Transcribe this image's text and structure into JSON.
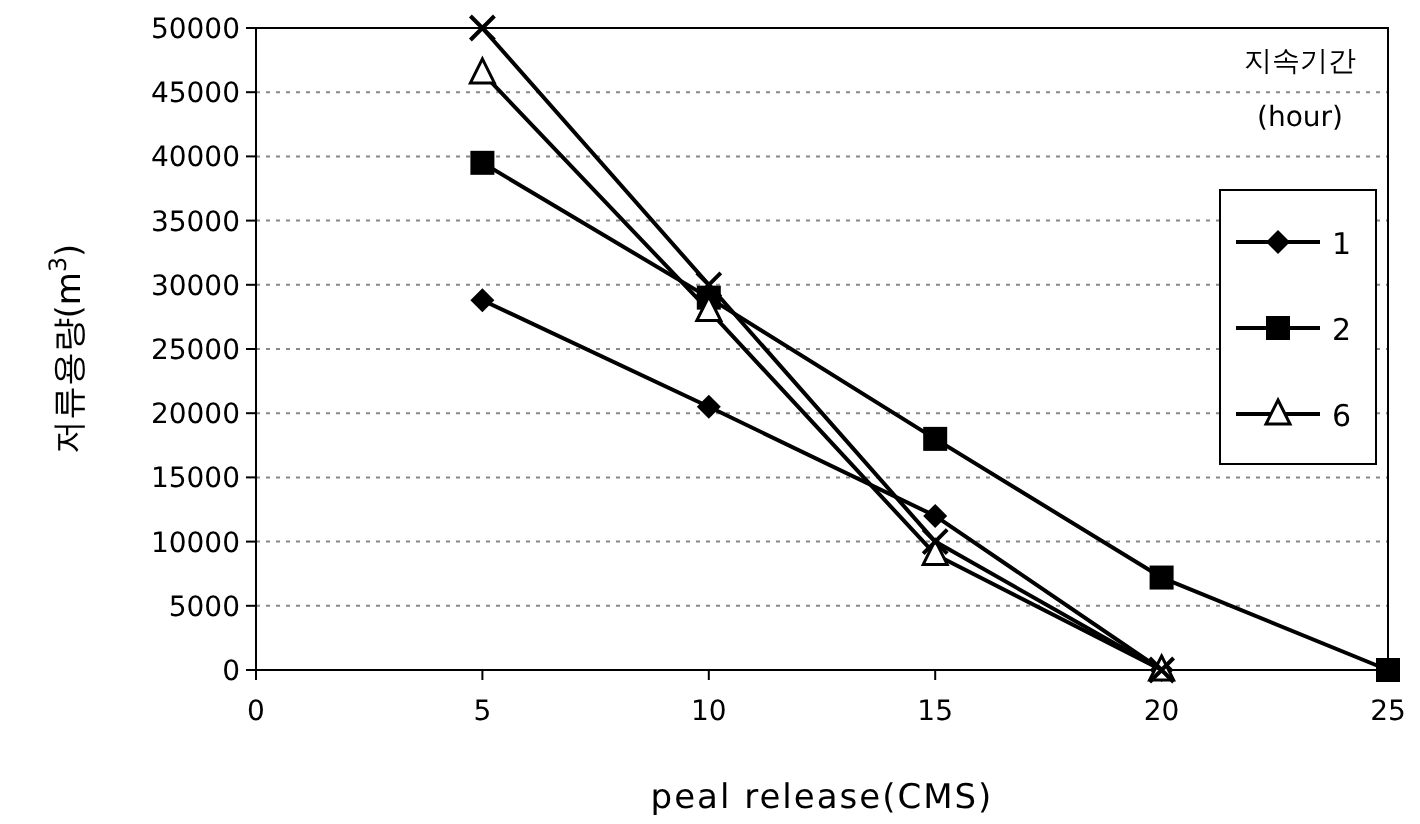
{
  "chart_data": {
    "type": "line",
    "xlabel": "peal release(CMS)",
    "ylabel": "저류용량(m$^{3}$)",
    "legend_title": "지속기간\n(hour)",
    "xlim": [
      0,
      25
    ],
    "xticks": [
      0,
      5,
      10,
      15,
      20,
      25
    ],
    "ylim": [
      0,
      50000
    ],
    "yticks": [
      0,
      5000,
      10000,
      15000,
      20000,
      25000,
      30000,
      35000,
      40000,
      45000,
      50000
    ],
    "grid": "y",
    "legend": "right",
    "line_style": "solid",
    "series": [
      {
        "name": "1",
        "color": "#000000",
        "marker": "diamond",
        "x": [
          5,
          10,
          15,
          20
        ],
        "values": [
          28800,
          20500,
          12000,
          0
        ]
      },
      {
        "name": "2",
        "color": "#000000",
        "marker": "square",
        "x": [
          5,
          10,
          15,
          20,
          25
        ],
        "values": [
          39500,
          29000,
          18000,
          7200,
          0
        ]
      },
      {
        "name": "6",
        "color": "#000000",
        "marker": "triangle",
        "x": [
          5,
          10,
          15,
          20
        ],
        "values": [
          46500,
          28000,
          9000,
          0
        ]
      },
      {
        "color": "#000000",
        "marker": "cross",
        "x": [
          5,
          10,
          15,
          20
        ],
        "values": [
          50000,
          30000,
          10000,
          0
        ]
      }
    ]
  }
}
